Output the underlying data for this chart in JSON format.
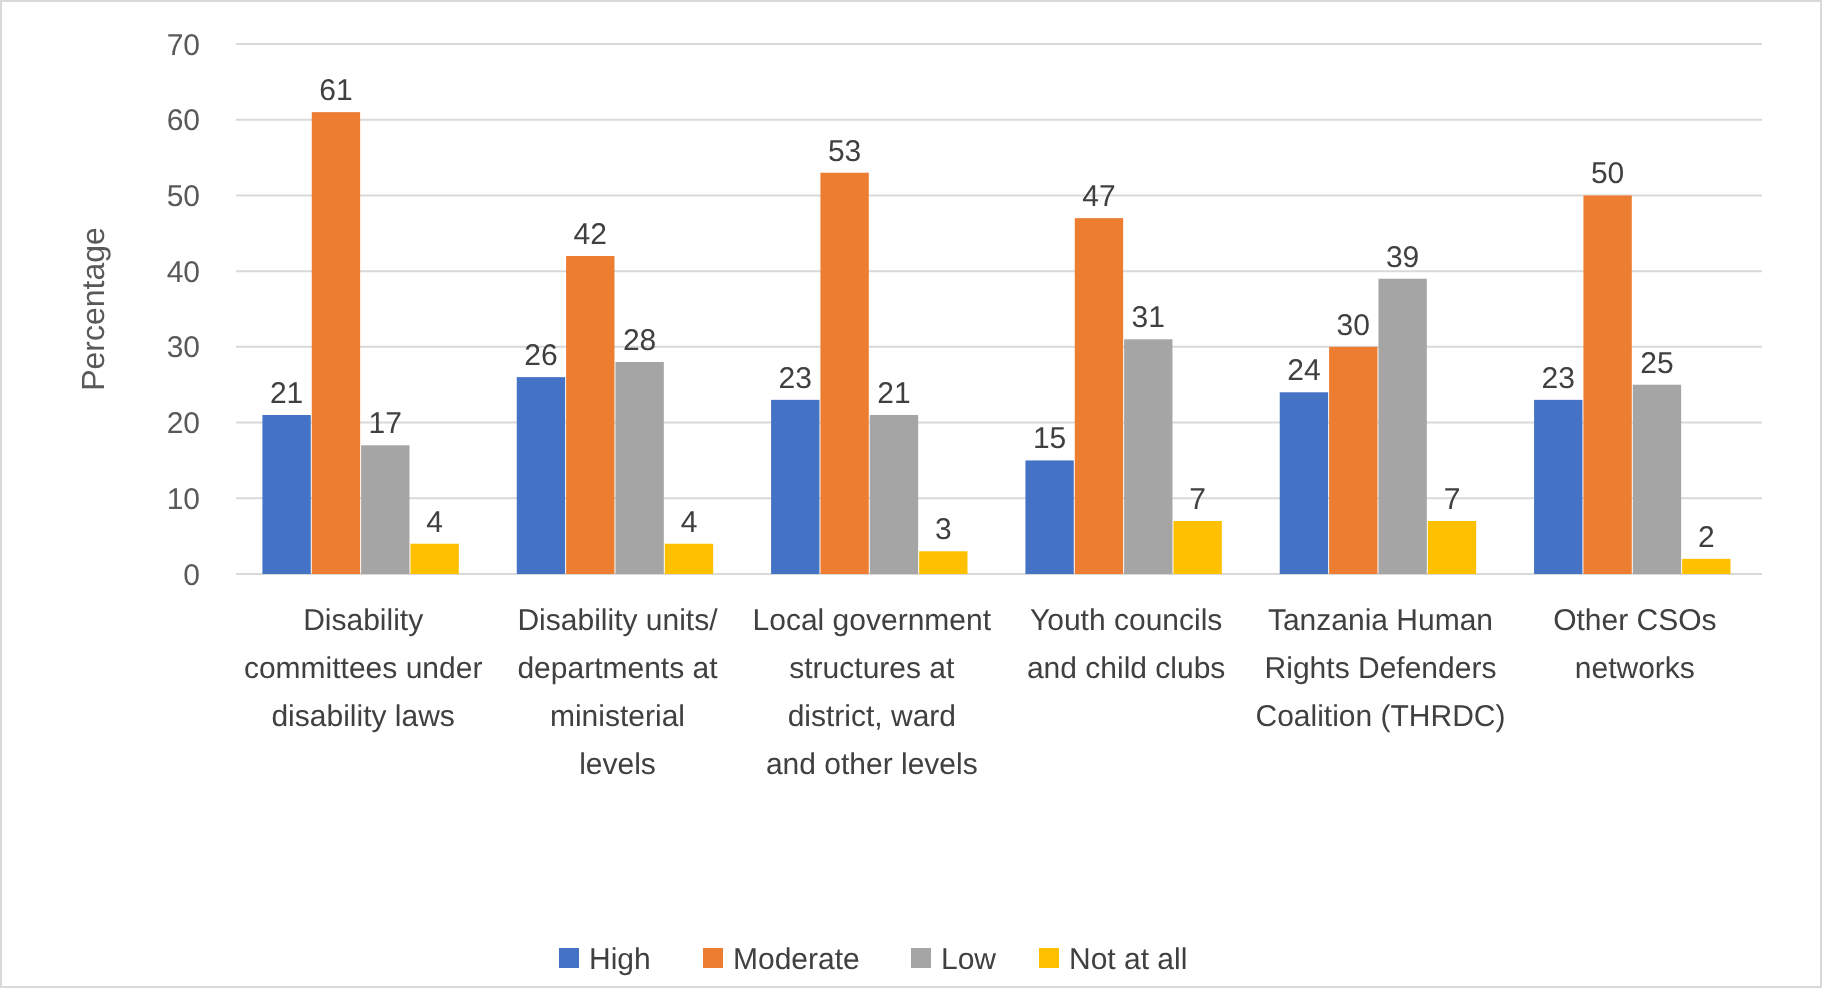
{
  "chart_data": {
    "type": "bar",
    "ylabel": "Percentage",
    "categories": [
      "Disability committees under disability laws",
      "Disability units/ departments at ministerial levels",
      "Local government structures at district, ward and other levels",
      "Youth councils and child clubs",
      "Tanzania Human Rights Defenders Coalition (THRDC)",
      "Other CSOs networks"
    ],
    "series": [
      {
        "name": "High",
        "color": "#4472c4",
        "values": [
          21,
          26,
          23,
          15,
          24,
          23
        ]
      },
      {
        "name": "Moderate",
        "color": "#ed7d31",
        "values": [
          61,
          42,
          53,
          47,
          30,
          50
        ]
      },
      {
        "name": "Low",
        "color": "#a5a5a5",
        "values": [
          17,
          28,
          21,
          31,
          39,
          25
        ]
      },
      {
        "name": "Not at all",
        "color": "#ffc000",
        "values": [
          4,
          4,
          3,
          7,
          7,
          2
        ]
      }
    ],
    "ylim": [
      0,
      70
    ],
    "yticks": [
      0,
      10,
      20,
      30,
      40,
      50,
      60,
      70
    ],
    "grid": "y",
    "legend": "bottom",
    "data_labels": true
  }
}
